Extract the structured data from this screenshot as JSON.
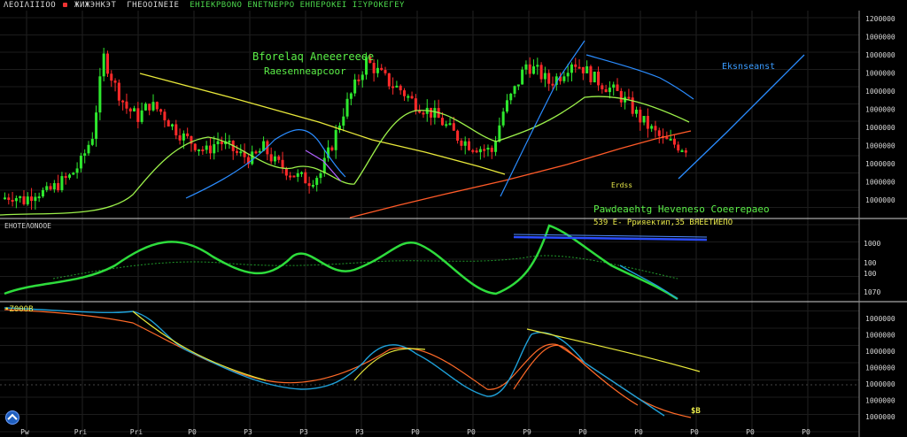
{
  "header": {
    "items": [
      "ΛΕΟΙΛΙΙΙΟΟ",
      "ЖИЖЭНКЭТ",
      "ΓΗΕΟΟΙΝΕΙΕ",
      "ΕΗΙΕΚΡΒΟΝΟ",
      "ΕΝΕΤΝΕΡΡΟ",
      "ΕΗΠΕΡΟΚΕΙ",
      "ΙΞΥΡΟΚΕΓΕΥ"
    ]
  },
  "annotations": {
    "title_line1": "Bforelaq Aneeereeee",
    "title_line2": "Raesenneapcoor",
    "blue_label": "Eksnseanst",
    "small_label": "Erdss",
    "pattern_line1": "Pawdeaehtg Heveneso Coeerepaeo",
    "pattern_line2": "539 Е- Ррияектип,35 ВЯЕЕТИЕПО",
    "macd_label": "ΕΗΟΤΕΛΟΝΟΟΕ",
    "bottom_label": "•Ζ00ΟΒ",
    "bottom_value": "$Β"
  },
  "price_axis": [
    "1200000",
    "1000000",
    "1000000",
    "1000000",
    "1000000",
    "1000000",
    "1000000",
    "1000000",
    "1000000",
    "1000000",
    "1000000"
  ],
  "macd_axis": [
    "1000",
    "100",
    "100",
    "1070"
  ],
  "rsi_axis": [
    "1000000",
    "1000000",
    "1000000",
    "1000000",
    "1000000",
    "1000000",
    "1000000"
  ],
  "date_axis": [
    "Pw",
    "Pri",
    "Pri",
    "P0",
    "P3",
    "P3",
    "P3",
    "P0",
    "P0",
    "P9",
    "P0",
    "P0",
    "P0",
    "P0",
    "P0"
  ],
  "colors": {
    "up": "#2ee82e",
    "down": "#ff2a2a",
    "ma_yellow": "#e8e83a",
    "ma_orange": "#ff5a28",
    "ma_lime": "#9cf04a",
    "trend_blue": "#2a8cff",
    "macd_green": "#2edc3c",
    "macd_blue": "#1ea0d8",
    "label_green": "#5cf048",
    "grid": "#2a2a2a"
  },
  "chart_data": {
    "type": "line",
    "series": [
      {
        "values": [
          0.1,
          0.12,
          0.09,
          0.14,
          0.13,
          0.18,
          0.22,
          0.3,
          0.45,
          0.88,
          0.72,
          0.6,
          0.55,
          0.62,
          0.58,
          0.5,
          0.44,
          0.4,
          0.36,
          0.42,
          0.38,
          0.34,
          0.32,
          0.38,
          0.3,
          0.26,
          0.22,
          0.2,
          0.24,
          0.4,
          0.58,
          0.72,
          0.86,
          0.8,
          0.74,
          0.7,
          0.64,
          0.6,
          0.56,
          0.5,
          0.44,
          0.4,
          0.38,
          0.36,
          0.58,
          0.7,
          0.84,
          0.8,
          0.74,
          0.78,
          0.86,
          0.82,
          0.76,
          0.72,
          0.68,
          0.62,
          0.54,
          0.48,
          0.42,
          0.4,
          0.38
        ]
      },
      {
        "values": [
          0.25,
          0.3,
          0.38,
          0.46,
          0.52,
          0.55,
          0.5,
          0.42,
          0.35,
          0.3,
          0.28,
          0.32,
          0.4,
          0.48,
          0.52,
          0.46,
          0.38,
          0.32,
          0.3,
          0.36,
          0.48,
          0.56,
          0.52,
          0.44,
          0.36,
          0.32,
          0.3,
          0.38,
          0.52,
          0.72,
          0.9,
          0.8,
          0.66,
          0.54,
          0.42,
          0.32,
          0.24
        ]
      },
      {
        "values": [
          0.95,
          0.93,
          0.9,
          0.88,
          0.86,
          0.9,
          0.8,
          0.65,
          0.52,
          0.4,
          0.3,
          0.22,
          0.18,
          0.17,
          0.2,
          0.16,
          0.14,
          0.26,
          0.45,
          0.55,
          0.58,
          0.5,
          0.44,
          0.38,
          0.32,
          0.3,
          0.5,
          0.75,
          0.72,
          0.62,
          0.42,
          0.3,
          0.2,
          0.1,
          0.04
        ]
      }
    ]
  }
}
